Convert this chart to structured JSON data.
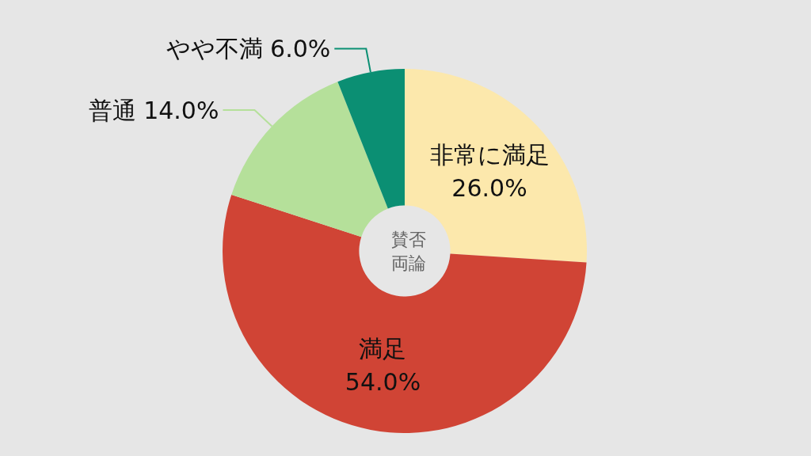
{
  "chart_data": {
    "type": "donut",
    "title": "賛否両論",
    "categories": [
      "非常に満足",
      "満足",
      "普通",
      "やや不満"
    ],
    "values": [
      26.0,
      54.0,
      14.0,
      6.0
    ],
    "value_labels": [
      "26.0%",
      "54.0%",
      "14.0%",
      "6.0%"
    ],
    "colors": [
      "#fce8ac",
      "#d04435",
      "#b5e09a",
      "#0b8f73"
    ],
    "legend": false
  }
}
